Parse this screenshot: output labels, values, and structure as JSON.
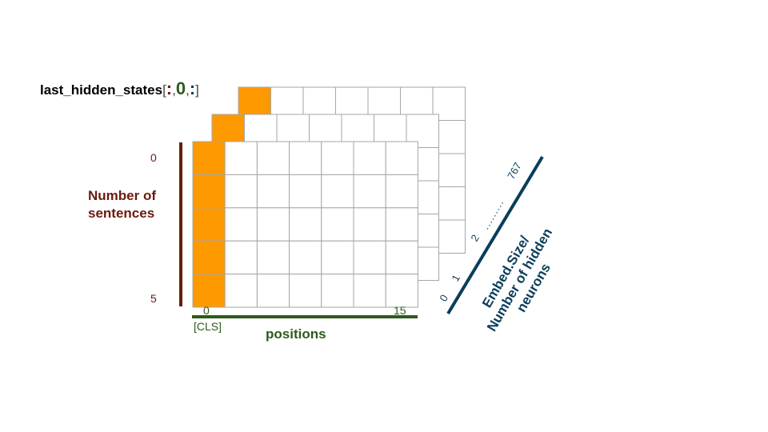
{
  "expression": {
    "func": "last_hidden_states",
    "open": "[",
    "idx1": ":",
    "comma1": ",",
    "idx2": "0",
    "comma2": ",",
    "idx3": ":",
    "close": "]"
  },
  "axes": {
    "sentences": {
      "title_line1": "Number of",
      "title_line2": "sentences",
      "start": "0",
      "end": "5",
      "color": "#6b1b0c"
    },
    "positions": {
      "title": "positions",
      "start": "0",
      "start_token": "[CLS]",
      "end": "15",
      "color": "#2e5a1c"
    },
    "embedding": {
      "title_line1": "Embed.Size/",
      "title_line2": "Number of hidden",
      "title_line3": "neurons",
      "ticks": [
        "0",
        "1",
        "2",
        "767"
      ],
      "dots": ".........",
      "color": "#0b3d5c"
    }
  },
  "colors": {
    "highlight": "#ff9900",
    "grid": "#a6a6a6"
  }
}
